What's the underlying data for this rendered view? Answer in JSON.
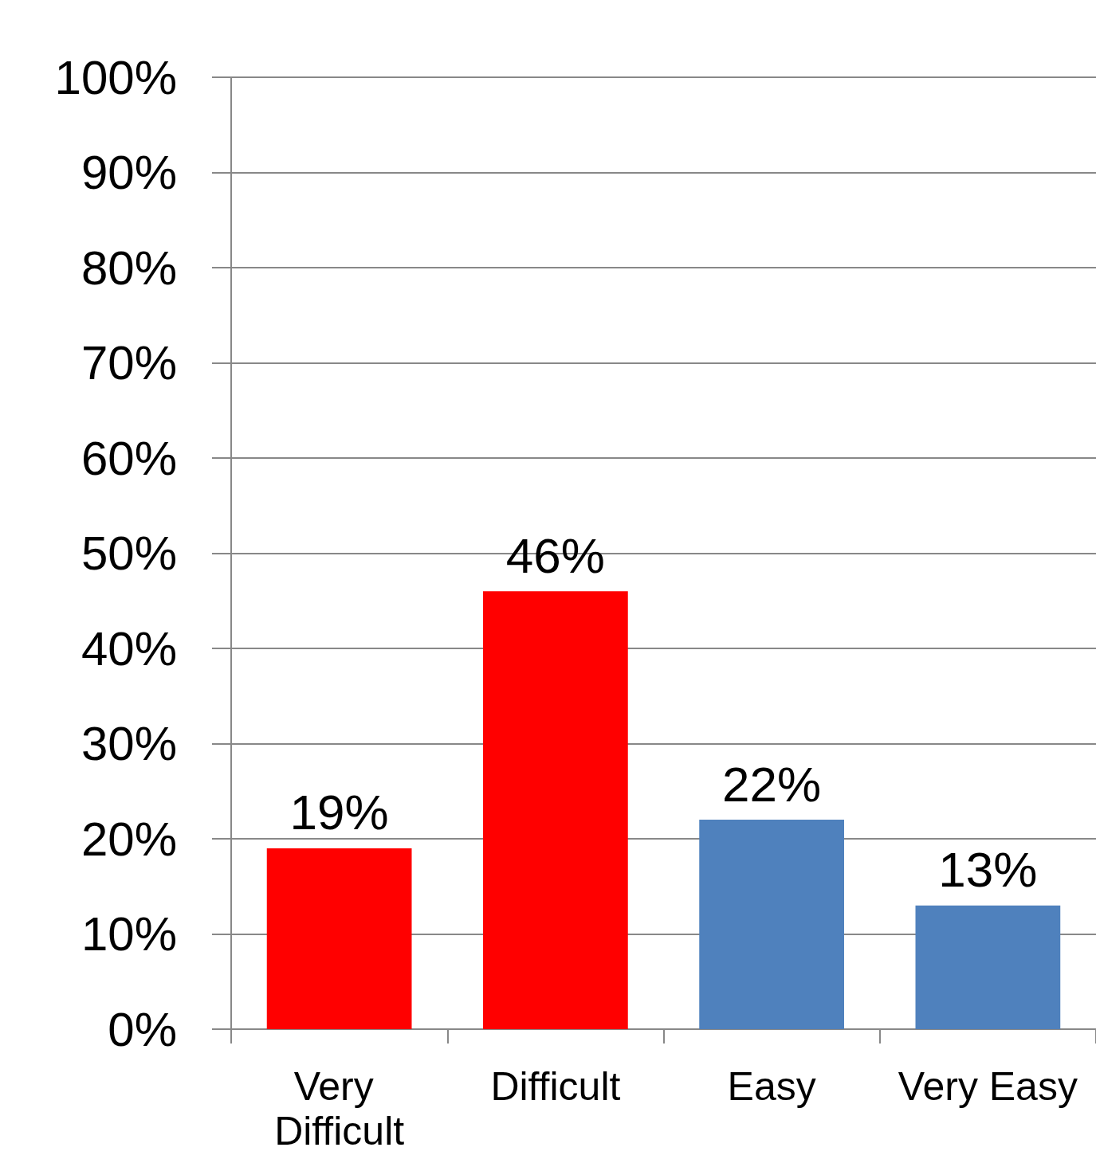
{
  "chart_data": {
    "type": "bar",
    "categories": [
      "Very Difficult",
      "Difficult",
      "Easy",
      "Very Easy"
    ],
    "values": [
      19,
      46,
      22,
      13
    ],
    "colors": [
      "#ff0000",
      "#ff0000",
      "#4f81bd",
      "#4f81bd"
    ],
    "value_labels": [
      "19%",
      "46%",
      "22%",
      "13%"
    ],
    "ylim": [
      0,
      100
    ],
    "yticks": [
      {
        "value": 0,
        "label": "0%"
      },
      {
        "value": 10,
        "label": "10%"
      },
      {
        "value": 20,
        "label": "20%"
      },
      {
        "value": 30,
        "label": "30%"
      },
      {
        "value": 40,
        "label": "40%"
      },
      {
        "value": 50,
        "label": "50%"
      },
      {
        "value": 60,
        "label": "60%"
      },
      {
        "value": 70,
        "label": "70%"
      },
      {
        "value": 80,
        "label": "80%"
      },
      {
        "value": 90,
        "label": "90%"
      },
      {
        "value": 100,
        "label": "100%"
      }
    ],
    "grid": "y"
  }
}
